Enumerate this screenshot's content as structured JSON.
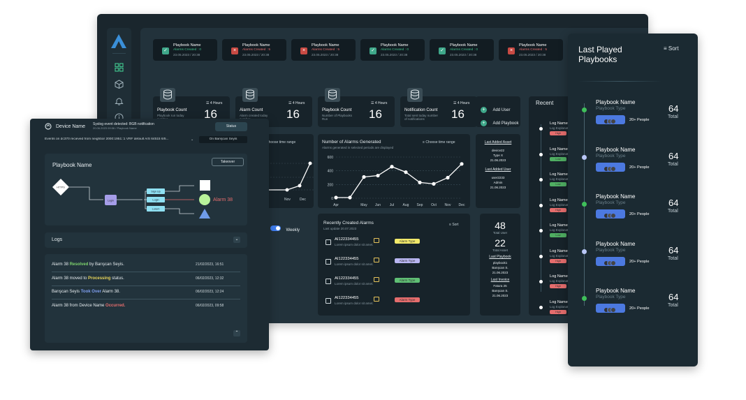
{
  "top_cards": [
    {
      "title": "Playbook Name",
      "status": "Alarms Created : 0",
      "date": "23.05.2023 / 20:38",
      "ok": true
    },
    {
      "title": "Playbook Name",
      "status": "Alarms Created : 5",
      "date": "23.05.2023 / 20:38",
      "ok": false
    },
    {
      "title": "Playbook Name",
      "status": "Alarms Created : 5",
      "date": "23.05.2023 / 20:38",
      "ok": false
    },
    {
      "title": "Playbook Name",
      "status": "Alarms Created : 0",
      "date": "23.05.2023 / 20:38",
      "ok": true
    },
    {
      "title": "Playbook Name",
      "status": "Alarms Created : 0",
      "date": "23.05.2023 / 20:38",
      "ok": true
    },
    {
      "title": "Playbook Name",
      "status": "Alarms Created : 5",
      "date": "23.05.2023 / 20:38",
      "ok": false
    }
  ],
  "stats": [
    {
      "title": "Playbook Count",
      "sub": "Playbook run today number",
      "value": "16",
      "range": "4 Hours"
    },
    {
      "title": "Alarm Count",
      "sub": "Alarm created today number",
      "value": "16",
      "range": "4 Hours"
    },
    {
      "title": "Playbook Count",
      "sub": "Number of Playbooks Run",
      "value": "16",
      "range": "4 Hours"
    },
    {
      "title": "Notification Count",
      "sub": "Total sent today number of notifications",
      "value": "16",
      "range": "4 Hours"
    }
  ],
  "actions": {
    "add_user": "Add User",
    "add_playbook": "Add Playbook"
  },
  "recent_title": "Recent",
  "alarm_chart": {
    "title": "Number of Alarms Generated",
    "subtitle": "Alarms generated in selected periods are displayed",
    "range_label": "Choose time range"
  },
  "chart_data": {
    "type": "line",
    "categories": [
      "Apr",
      "May",
      "Jun",
      "Jul",
      "Aug",
      "Sep",
      "Oct",
      "Nov",
      "Dec"
    ],
    "values": [
      10,
      10,
      310,
      330,
      460,
      380,
      230,
      210,
      300,
      500
    ],
    "x": [
      "Apr",
      "",
      "May",
      "Jun",
      "Jul",
      "Aug",
      "Sep",
      "Oct",
      "Nov",
      "Dec"
    ],
    "ylim": [
      0,
      600
    ],
    "yticks": [
      0,
      200,
      400,
      600
    ]
  },
  "left_chart": {
    "range_label": "Choose time range",
    "ticks": [
      "Nov",
      "Dec"
    ]
  },
  "last_added": {
    "asset_title": "Last Added Asset",
    "asset_name": "device22",
    "asset_type": "Type X",
    "asset_date": "21.06.2023",
    "user_title": "Last Added User",
    "user_name": "user2233",
    "user_role": "Admin",
    "user_date": "21.06.2023"
  },
  "weekly": {
    "label": "Weekly"
  },
  "recent_alarms": {
    "title": "Recently Created Alarms",
    "subtitle": "Last update 20.07.2023",
    "sort": "Sort",
    "rows": [
      {
        "id": "AI122334455",
        "desc": "Lorem ipsum dolor sit amet.",
        "tag": "Alarm Type",
        "color": "#f2e96a"
      },
      {
        "id": "AI122334455",
        "desc": "Lorem ipsum dolor sit amet.",
        "tag": "Alarm Type",
        "color": "#b9b6f2"
      },
      {
        "id": "AI122334455",
        "desc": "Lorem ipsum dolor sit amet.",
        "tag": "Alarm Type",
        "color": "#5fbf74"
      },
      {
        "id": "AI122334455",
        "desc": "Lorem ipsum dolor sit amet.",
        "tag": "Alarm Type",
        "color": "#e56d6d"
      }
    ]
  },
  "totals": {
    "users": "48",
    "users_label": "Total User",
    "assets": "22",
    "assets_label": "Total Asset",
    "pb_title": "Last Playbook",
    "pb_name": "playbook1",
    "pb_owner": "Barışcan S.",
    "pb_date": "21.06.2023",
    "inv_title": "Last Invoice",
    "inv_name": "Fatura 25",
    "inv_owner": "Barışcan S.",
    "inv_date": "21.06.2023"
  },
  "recent_logs": [
    {
      "title": "Log Name",
      "sub": "Log Explanation",
      "tag": "High",
      "color": "#e56d6d"
    },
    {
      "title": "Log Name",
      "sub": "Log Explanation",
      "tag": "Low",
      "color": "#4fae62"
    },
    {
      "title": "Log Name",
      "sub": "Log Explanation",
      "tag": "Low",
      "color": "#4fae62"
    },
    {
      "title": "Log Name",
      "sub": "Log Explanation",
      "tag": "High",
      "color": "#e56d6d"
    },
    {
      "title": "Log Name",
      "sub": "Log Explanation",
      "tag": "Low",
      "color": "#4fae62"
    },
    {
      "title": "Log Name",
      "sub": "Log Explanation",
      "tag": "High",
      "color": "#e56d6d"
    },
    {
      "title": "Log Name",
      "sub": "Log Explanation",
      "tag": "High",
      "color": "#e56d6d"
    },
    {
      "title": "Log Name",
      "sub": "Log Explanation",
      "tag": "High",
      "color": "#e56d6d"
    }
  ],
  "device": {
    "title": "Device Name",
    "event": "Syslog event detected: BGB notification",
    "event_sub": "20.06.2023 09:06 / Playbook Name",
    "status_btn": "Status",
    "message": "Events on dc370 recieved from neighbor 2000:1951::1 VRF default A/S 64515 6/5...",
    "assignee": "On Barışcan Seyis",
    "playbook_title": "Playbook Name",
    "takeover": "Takeover",
    "flow": {
      "start": "HTTPS",
      "login": "Login",
      "signup": "Sign Up",
      "login2": "Login",
      "lorem": "Lorem",
      "alarm": "Alarm 38"
    },
    "logs_title": "Logs",
    "logs": [
      {
        "pre": "Alarm 38 ",
        "hl": "Resolved",
        "post": " by Barışcan Seyis.",
        "color": "#7fd46e",
        "date": "21/02/2023, 16:51"
      },
      {
        "pre": "Alarm 38 moved to ",
        "hl": "Processing",
        "post": " status.",
        "color": "#e6d45a",
        "date": "06/02/2023, 12:32"
      },
      {
        "pre": "Barışcan Seyis ",
        "hl": "Took Over",
        "post": " Alarm 38.",
        "color": "#7f9ff0",
        "date": "06/02/2023, 12:24"
      },
      {
        "pre": "Alarm 38 from Device Name ",
        "hl": "Occurred.",
        "post": "",
        "color": "#e56d6d",
        "date": "06/02/2023, 09:58"
      }
    ]
  },
  "played": {
    "title_line1": "Last Played",
    "title_line2": "Playbooks",
    "sort": "Sort",
    "items": [
      {
        "name": "Playbook Name",
        "type": "Playbook Type",
        "people": "20+ People",
        "total": "64",
        "total_label": "Total",
        "dot": "#3fbf5a"
      },
      {
        "name": "Playbook Name",
        "type": "Playbook Type",
        "people": "20+ People",
        "total": "64",
        "total_label": "Total",
        "dot": "#b9c6f5"
      },
      {
        "name": "Playbook Name",
        "type": "Playbook Type",
        "people": "20+ People",
        "total": "64",
        "total_label": "Total",
        "dot": "#3fbf5a"
      },
      {
        "name": "Playbook Name",
        "type": "Playbook Type",
        "people": "20+ People",
        "total": "64",
        "total_label": "Total",
        "dot": "#b9c6f5"
      },
      {
        "name": "Playbook Name",
        "type": "Playbook Type",
        "people": "20+ People",
        "total": "64",
        "total_label": "Total",
        "dot": "#3fbf5a"
      }
    ]
  }
}
